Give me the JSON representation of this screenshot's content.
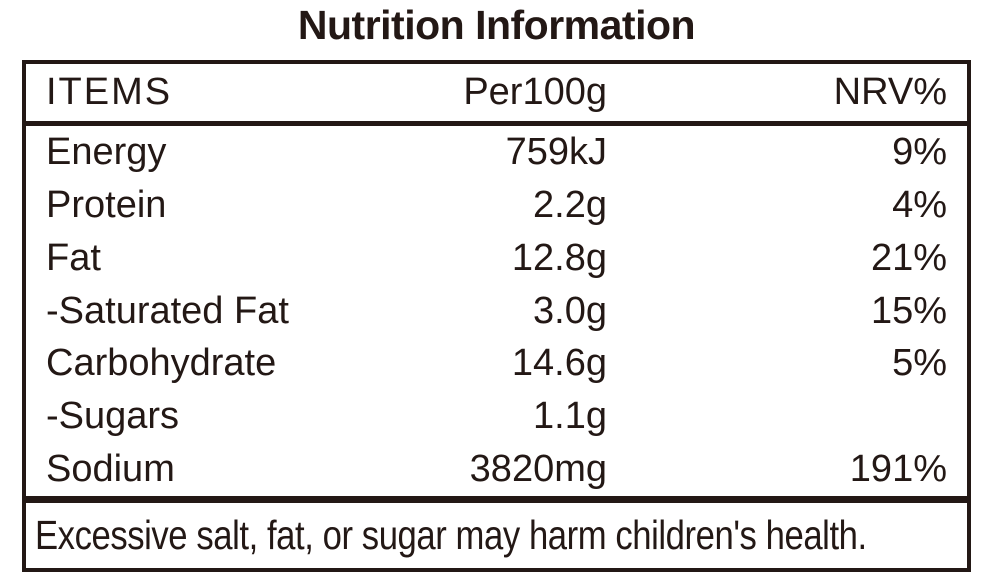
{
  "title": "Nutrition Information",
  "table": {
    "headers": {
      "items": "ITEMS",
      "per100g": "Per100g",
      "nrv": "NRV%"
    },
    "rows": [
      {
        "item": "Energy",
        "per100g": "759kJ",
        "nrv": "9%"
      },
      {
        "item": "Protein",
        "per100g": "2.2g",
        "nrv": "4%"
      },
      {
        "item": "Fat",
        "per100g": "12.8g",
        "nrv": "21%"
      },
      {
        "item": "-Saturated Fat",
        "per100g": "3.0g",
        "nrv": "15%"
      },
      {
        "item": "Carbohydrate",
        "per100g": "14.6g",
        "nrv": "5%"
      },
      {
        "item": "-Sugars",
        "per100g": "1.1g",
        "nrv": ""
      },
      {
        "item": "Sodium",
        "per100g": "3820mg",
        "nrv": "191%"
      }
    ]
  },
  "footer": {
    "warning": "Excessive salt, fat, or sugar may harm children's health."
  },
  "colors": {
    "ink": "#231815",
    "background": "#ffffff"
  }
}
